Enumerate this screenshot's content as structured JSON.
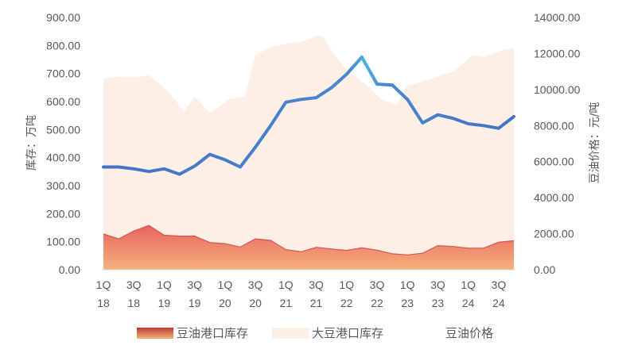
{
  "chart_data": {
    "type": "area",
    "categories": [
      "1Q18",
      "2Q18",
      "3Q18",
      "4Q18",
      "1Q19",
      "2Q19",
      "3Q19",
      "4Q19",
      "1Q20",
      "2Q20",
      "3Q20",
      "4Q20",
      "1Q21",
      "2Q21",
      "3Q21",
      "4Q21",
      "1Q22",
      "2Q22",
      "3Q22",
      "4Q22",
      "1Q23",
      "2Q23",
      "3Q23",
      "4Q23",
      "1Q24",
      "2Q24",
      "3Q24",
      "4Q24"
    ],
    "x_tick_labels": [
      {
        "index": 0,
        "top": "1Q",
        "bottom": "18"
      },
      {
        "index": 2,
        "top": "3Q",
        "bottom": "18"
      },
      {
        "index": 4,
        "top": "1Q",
        "bottom": "19"
      },
      {
        "index": 6,
        "top": "3Q",
        "bottom": "19"
      },
      {
        "index": 8,
        "top": "1Q",
        "bottom": "20"
      },
      {
        "index": 10,
        "top": "3Q",
        "bottom": "20"
      },
      {
        "index": 12,
        "top": "1Q",
        "bottom": "21"
      },
      {
        "index": 14,
        "top": "3Q",
        "bottom": "21"
      },
      {
        "index": 16,
        "top": "1Q",
        "bottom": "22"
      },
      {
        "index": 18,
        "top": "3Q",
        "bottom": "22"
      },
      {
        "index": 20,
        "top": "1Q",
        "bottom": "23"
      },
      {
        "index": 22,
        "top": "3Q",
        "bottom": "23"
      },
      {
        "index": 24,
        "top": "1Q",
        "bottom": "24"
      },
      {
        "index": 26,
        "top": "3Q",
        "bottom": "24"
      }
    ],
    "ylabel": "库存：万吨",
    "y2label": "豆油价格：元/吨",
    "ylim": [
      0,
      900
    ],
    "y_ticks": [
      0,
      100,
      200,
      300,
      400,
      500,
      600,
      700,
      800,
      900
    ],
    "y_tick_labels": [
      "0.00",
      "100.00",
      "200.00",
      "300.00",
      "400.00",
      "500.00",
      "600.00",
      "700.00",
      "800.00",
      "900.00"
    ],
    "y2lim": [
      0,
      14000
    ],
    "y2_ticks": [
      0,
      2000,
      4000,
      6000,
      8000,
      10000,
      12000,
      14000
    ],
    "y2_tick_labels": [
      "0.00",
      "2000.00",
      "4000.00",
      "6000.00",
      "8000.00",
      "10000.00",
      "12000.00",
      "14000.00"
    ],
    "grid": false,
    "legend_position": "bottom",
    "series": [
      {
        "name": "大豆港口库存",
        "kind": "area",
        "axis": "left",
        "color": "#fdefe6",
        "values": [
          681,
          688,
          689,
          694,
          635,
          565,
          618,
          560,
          609,
          618,
          768,
          798,
          808,
          813,
          838,
          762,
          712,
          659,
          608,
          588,
          658,
          676,
          695,
          705,
          766,
          759,
          784,
          787
        ],
        "offsets": [
          0,
          0.08,
          0.55,
          0,
          0.55,
          0.55,
          0,
          0,
          0.55,
          0.55,
          0,
          0.55,
          0.55,
          0,
          0.55,
          0.55,
          0,
          0.55,
          0.55,
          0.55,
          0,
          0.55,
          0.55,
          0,
          0.55,
          0,
          0.55,
          0
        ]
      },
      {
        "name": "豆油港口库存",
        "kind": "area",
        "axis": "left",
        "color_top": "#e8635f",
        "color_bottom": "#f4b27d",
        "values": [
          128,
          110,
          138,
          158,
          123,
          120,
          120,
          97,
          93,
          81,
          110,
          105,
          72,
          64,
          80,
          74,
          69,
          78,
          70,
          57,
          53,
          59,
          86,
          83,
          77,
          77,
          98,
          104
        ]
      },
      {
        "name": "豆油价格",
        "kind": "line",
        "axis": "right",
        "color_start": "#4472c4",
        "color_end": "#47b4e3",
        "values": [
          5700,
          5700,
          5600,
          5450,
          5600,
          5300,
          5750,
          6400,
          6100,
          5700,
          6800,
          8000,
          9300,
          9450,
          9550,
          10100,
          10850,
          11800,
          10300,
          10250,
          9450,
          8150,
          8600,
          8400,
          8100,
          8000,
          7850,
          8500
        ]
      }
    ]
  },
  "legend": [
    {
      "label": "豆油港口库存"
    },
    {
      "label": "大豆港口库存"
    },
    {
      "label": "豆油价格"
    }
  ]
}
